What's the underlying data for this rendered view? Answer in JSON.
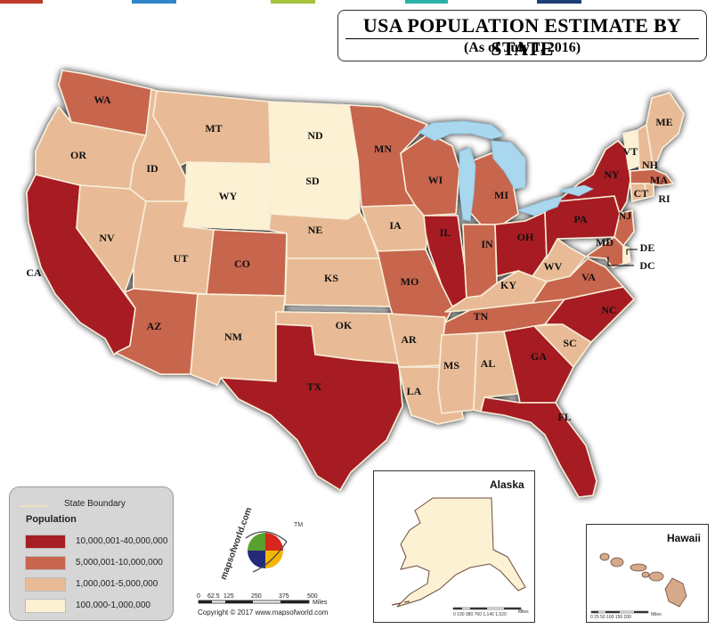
{
  "title": "USA POPULATION ESTIMATE BY STATE",
  "subtitle": "(As of July 1, 2016)",
  "colors": {
    "tier1": "#a61f24",
    "tier2": "#c8654e",
    "tier3": "#e8bb96",
    "tier4": "#fdf1d3",
    "lake": "#a9d7ee",
    "state_boundary": "#efe2bd"
  },
  "top_strip_colors": [
    "#c0392b",
    "#2f86c8",
    "#a6c23a",
    "#2ab3a8",
    "#1d3f73"
  ],
  "legend": {
    "state_boundary_label": "State Boundary",
    "population_title": "Population",
    "items": [
      {
        "label": "10,000,001-40,000,000",
        "tier": "tier1"
      },
      {
        "label": "5,000,001-10,000,000",
        "tier": "tier2"
      },
      {
        "label": "1,000,001-5,000,000",
        "tier": "tier3"
      },
      {
        "label": "100,000-1,000,000",
        "tier": "tier4"
      }
    ]
  },
  "states": [
    {
      "abbr": "WA",
      "tier": "tier2"
    },
    {
      "abbr": "OR",
      "tier": "tier3"
    },
    {
      "abbr": "CA",
      "tier": "tier1"
    },
    {
      "abbr": "NV",
      "tier": "tier3"
    },
    {
      "abbr": "ID",
      "tier": "tier3"
    },
    {
      "abbr": "MT",
      "tier": "tier3"
    },
    {
      "abbr": "WY",
      "tier": "tier4"
    },
    {
      "abbr": "UT",
      "tier": "tier3"
    },
    {
      "abbr": "AZ",
      "tier": "tier2"
    },
    {
      "abbr": "CO",
      "tier": "tier2"
    },
    {
      "abbr": "NM",
      "tier": "tier3"
    },
    {
      "abbr": "ND",
      "tier": "tier4"
    },
    {
      "abbr": "SD",
      "tier": "tier4"
    },
    {
      "abbr": "NE",
      "tier": "tier3"
    },
    {
      "abbr": "KS",
      "tier": "tier3"
    },
    {
      "abbr": "OK",
      "tier": "tier3"
    },
    {
      "abbr": "TX",
      "tier": "tier1"
    },
    {
      "abbr": "MN",
      "tier": "tier2"
    },
    {
      "abbr": "IA",
      "tier": "tier3"
    },
    {
      "abbr": "MO",
      "tier": "tier2"
    },
    {
      "abbr": "AR",
      "tier": "tier3"
    },
    {
      "abbr": "LA",
      "tier": "tier3"
    },
    {
      "abbr": "WI",
      "tier": "tier2"
    },
    {
      "abbr": "IL",
      "tier": "tier1"
    },
    {
      "abbr": "MI",
      "tier": "tier2"
    },
    {
      "abbr": "IN",
      "tier": "tier2"
    },
    {
      "abbr": "OH",
      "tier": "tier1"
    },
    {
      "abbr": "KY",
      "tier": "tier3"
    },
    {
      "abbr": "TN",
      "tier": "tier2"
    },
    {
      "abbr": "MS",
      "tier": "tier3"
    },
    {
      "abbr": "AL",
      "tier": "tier3"
    },
    {
      "abbr": "GA",
      "tier": "tier1"
    },
    {
      "abbr": "FL",
      "tier": "tier1"
    },
    {
      "abbr": "SC",
      "tier": "tier3"
    },
    {
      "abbr": "NC",
      "tier": "tier1"
    },
    {
      "abbr": "VA",
      "tier": "tier2"
    },
    {
      "abbr": "WV",
      "tier": "tier3"
    },
    {
      "abbr": "PA",
      "tier": "tier1"
    },
    {
      "abbr": "NY",
      "tier": "tier1"
    },
    {
      "abbr": "VT",
      "tier": "tier4"
    },
    {
      "abbr": "NH",
      "tier": "tier3"
    },
    {
      "abbr": "ME",
      "tier": "tier3"
    },
    {
      "abbr": "MA",
      "tier": "tier2"
    },
    {
      "abbr": "RI",
      "tier": "tier3"
    },
    {
      "abbr": "CT",
      "tier": "tier3"
    },
    {
      "abbr": "NJ",
      "tier": "tier2"
    },
    {
      "abbr": "DE",
      "tier": "tier4"
    },
    {
      "abbr": "MD",
      "tier": "tier2"
    },
    {
      "abbr": "DC",
      "tier": "tier4"
    },
    {
      "abbr": "AK",
      "tier": "tier4"
    },
    {
      "abbr": "HI",
      "tier": "tier3"
    }
  ],
  "insets": {
    "alaska_label": "Alaska",
    "hawaii_label": "Hawaii",
    "alaska_scale": "0  190 380    760     1,140   1,520",
    "alaska_scale_unit": "Miles",
    "hawaii_scale": "0  25  50    100   150   200",
    "hawaii_scale_unit": "Miles"
  },
  "scale": {
    "ticks": [
      "0",
      "62.5",
      "125",
      "250",
      "375",
      "500"
    ],
    "unit": "Miles"
  },
  "logo": {
    "text": "mapsofworld.com",
    "tm": "TM"
  },
  "copyright": "Copyright © 2017 www.mapsofworld.com"
}
